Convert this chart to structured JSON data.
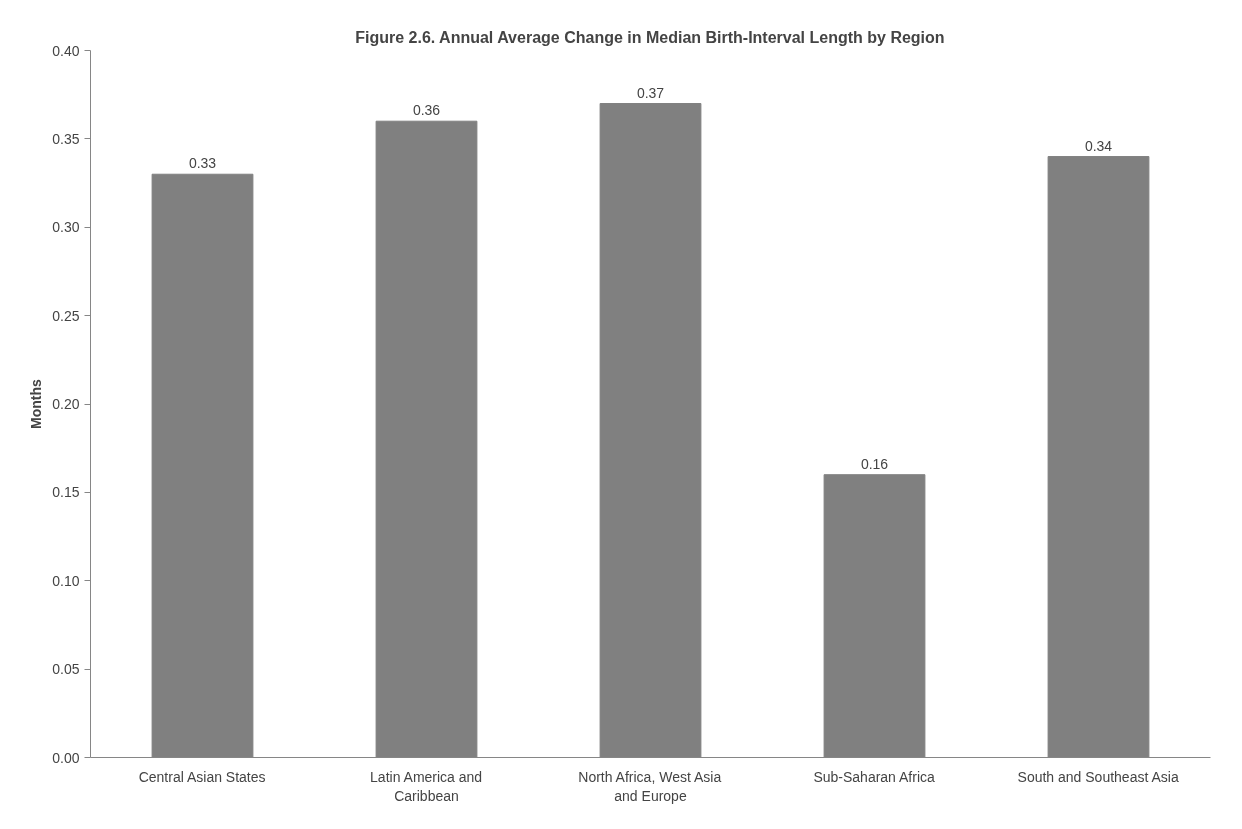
{
  "chart_data": {
    "type": "bar",
    "title": "Figure 2.6. Annual Average Change in Median Birth-Interval Length by Region",
    "ylabel": "Months",
    "categories": [
      "Central Asian States",
      "Latin America and Caribbean",
      "North Africa, West Asia and Europe",
      "Sub-Saharan Africa",
      "South and Southeast Asia"
    ],
    "values": [
      0.33,
      0.36,
      0.37,
      0.16,
      0.34
    ],
    "color": "#808080",
    "ylim": [
      0,
      0.4
    ],
    "yticks": [
      {
        "value": 0,
        "label": "0.00"
      },
      {
        "value": 0.05,
        "label": "0.05"
      },
      {
        "value": 0.1,
        "label": "0.10"
      },
      {
        "value": 0.15,
        "label": "0.15"
      },
      {
        "value": 0.2,
        "label": "0.20"
      },
      {
        "value": 0.25,
        "label": "0.25"
      },
      {
        "value": 0.3,
        "label": "0.30"
      },
      {
        "value": 0.35,
        "label": "0.35"
      },
      {
        "value": 0.4,
        "label": "0.40"
      }
    ],
    "data_labels": true,
    "grid": false
  }
}
